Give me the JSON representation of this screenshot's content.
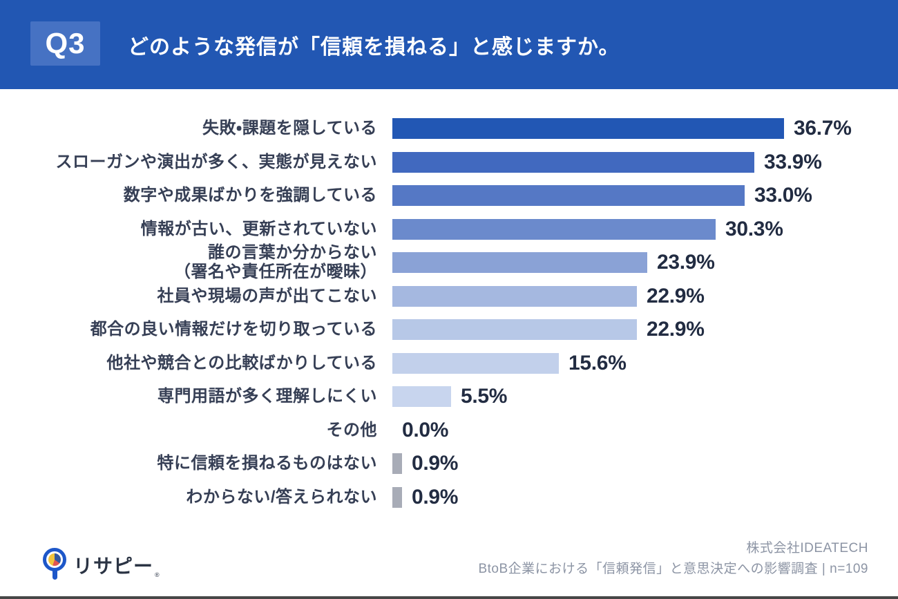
{
  "header": {
    "badge": "Q3",
    "title": "どのような発信が「信頼を損ねる」と感じますか。",
    "banner_color": "#2257b3",
    "badge_color": "#4672c3"
  },
  "chart_data": {
    "type": "bar",
    "orientation": "horizontal",
    "unit": "%",
    "xlim": [
      0,
      38.5
    ],
    "grid": false,
    "value_label_position": "end-of-bar",
    "categories": [
      "失敗・課題を隠している",
      "スローガンや演出が多く、実態が見えない",
      "数字や成果ばかりを強調している",
      "情報が古い、更新されていない",
      "誰の言葉か分からない\n（署名や責任所在が曖昧）",
      "社員や現場の声が出てこない",
      "都合の良い情報だけを切り取っている",
      "他社や競合との比較ばかりしている",
      "専門用語が多く理解しにくい",
      "その他",
      "特に信頼を損ねるものはない",
      "わからない/答えられない"
    ],
    "values": [
      36.7,
      33.9,
      33.0,
      30.3,
      23.9,
      22.9,
      22.9,
      15.6,
      5.5,
      0.0,
      0.9,
      0.9
    ],
    "value_labels": [
      "36.7%",
      "33.9%",
      "33.0%",
      "30.3%",
      "23.9%",
      "22.9%",
      "22.9%",
      "15.6%",
      "5.5%",
      "0.0%",
      "0.9%",
      "0.9%"
    ],
    "bar_colors": [
      "#2257b4",
      "#4169bf",
      "#5578c5",
      "#6b8acc",
      "#8aa2d6",
      "#a5b8e0",
      "#b7c8e7",
      "#c2d0eb",
      "#c8d5ee",
      "#c8d5ee",
      "#a8acb7",
      "#a8acb7"
    ]
  },
  "footer": {
    "logo_text": "リサピー",
    "logo_mark": "®",
    "company": "株式会社IDEATECH",
    "survey": "BtoB企業における「信頼発信」と意思決定への影響調査 | n=109"
  }
}
